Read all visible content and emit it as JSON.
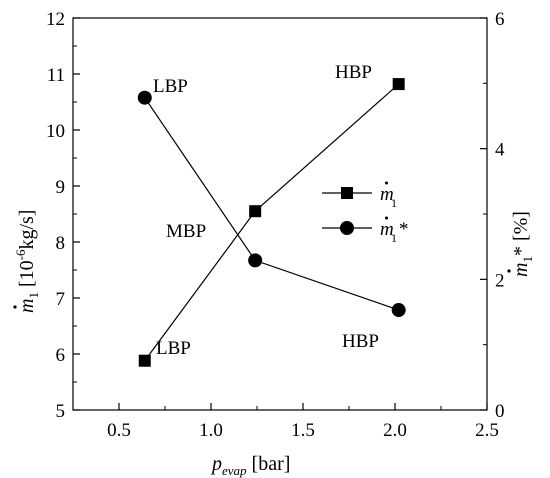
{
  "chart_data": {
    "type": "line",
    "xlabel": "p_evap [bar]",
    "xlabel_main": "p",
    "xlabel_sub": "evap",
    "xlabel_unit": " [bar]",
    "ylabel_left": "ṁ₁ [10⁻⁶kg/s]",
    "ylabel_left_unit_pre": " [10",
    "ylabel_left_unit_exp": "-6",
    "ylabel_left_unit_post": "kg/s]",
    "ylabel_right": "ṁ₁* [%]",
    "ylabel_right_unit": " [%]",
    "xlim": [
      0.25,
      2.5
    ],
    "ylim_left": [
      5,
      12
    ],
    "ylim_right": [
      0,
      6
    ],
    "xticks": [
      "0.5",
      "1.0",
      "1.5",
      "2.0",
      "2.5"
    ],
    "yticks_left": [
      "5",
      "6",
      "7",
      "8",
      "9",
      "10",
      "11",
      "12"
    ],
    "yticks_right": [
      "0",
      "2",
      "4",
      "6"
    ],
    "legend_position": "center-right",
    "grid": false,
    "series": [
      {
        "name": "ṁ1",
        "axis": "left",
        "marker": "square",
        "x": [
          0.64,
          1.24,
          2.02
        ],
        "y": [
          5.88,
          8.55,
          10.82
        ]
      },
      {
        "name": "ṁ1*",
        "axis": "right",
        "marker": "circle",
        "x": [
          0.64,
          1.24,
          2.02
        ],
        "y": [
          4.78,
          2.29,
          1.53
        ]
      }
    ],
    "annotations": [
      {
        "text": "LBP",
        "near": "top-left point"
      },
      {
        "text": "HBP",
        "near": "top-right point"
      },
      {
        "text": "MBP",
        "near": "middle crossing"
      },
      {
        "text": "LBP",
        "near": "bottom-left point"
      },
      {
        "text": "HBP",
        "near": "bottom-right point"
      }
    ]
  }
}
